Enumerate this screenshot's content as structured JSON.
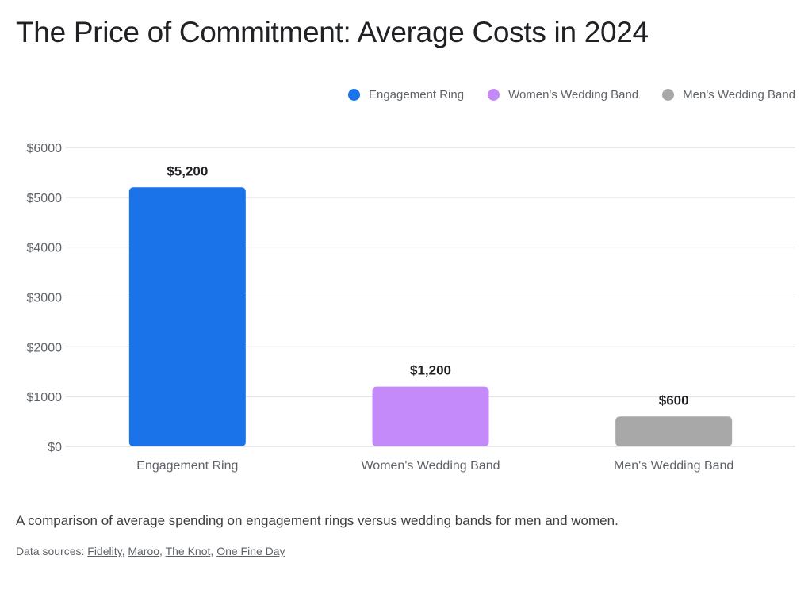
{
  "title": "The Price of Commitment: Average Costs in 2024",
  "legend": [
    {
      "label": "Engagement Ring",
      "color": "#1a73e8"
    },
    {
      "label": "Women's Wedding Band",
      "color": "#c58af9"
    },
    {
      "label": "Men's Wedding Band",
      "color": "#a8a8a8"
    }
  ],
  "caption": "A comparison of average spending on engagement rings versus wedding bands for men and women.",
  "sources": {
    "prefix": "Data sources: ",
    "links": [
      "Fidelity",
      "Maroo",
      "The Knot",
      "One Fine Day"
    ]
  },
  "chart_data": {
    "type": "bar",
    "title": "The Price of Commitment: Average Costs in 2024",
    "xlabel": "",
    "ylabel": "",
    "categories": [
      "Engagement Ring",
      "Women's Wedding Band",
      "Men's Wedding Band"
    ],
    "values": [
      5200,
      1200,
      600
    ],
    "data_labels": [
      "$5,200",
      "$1,200",
      "$600"
    ],
    "colors": [
      "#1a73e8",
      "#c58af9",
      "#a8a8a8"
    ],
    "ylim": [
      0,
      6000
    ],
    "yticks": [
      0,
      1000,
      2000,
      3000,
      4000,
      5000,
      6000
    ],
    "ytick_labels": [
      "$0",
      "$1000",
      "$2000",
      "$3000",
      "$4000",
      "$5000",
      "$6000"
    ],
    "grid": true,
    "legend_position": "top-right"
  }
}
